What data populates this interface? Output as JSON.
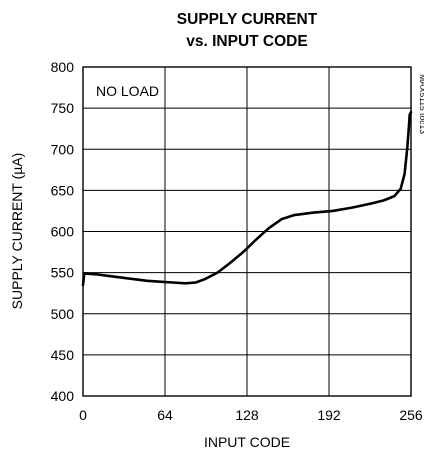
{
  "chart_data": {
    "type": "line",
    "title_line1": "SUPPLY CURRENT",
    "title_line2": "vs. INPUT CODE",
    "xlabel": "INPUT CODE",
    "ylabel": "SUPPLY CURRENT (µA)",
    "xlim": [
      0,
      256
    ],
    "ylim": [
      400,
      800
    ],
    "x_ticks": [
      0,
      64,
      128,
      192,
      256
    ],
    "y_ticks": [
      400,
      450,
      500,
      550,
      600,
      650,
      700,
      750,
      800
    ],
    "grid": true,
    "annotation": "NO LOAD",
    "figure_id": "MAX5115 toc13",
    "series": [
      {
        "points": [
          [
            0,
            535
          ],
          [
            1,
            549
          ],
          [
            10,
            548
          ],
          [
            20,
            546
          ],
          [
            30,
            544
          ],
          [
            40,
            542
          ],
          [
            50,
            540
          ],
          [
            60,
            539
          ],
          [
            70,
            538
          ],
          [
            80,
            537
          ],
          [
            88,
            538
          ],
          [
            95,
            542
          ],
          [
            105,
            550
          ],
          [
            115,
            562
          ],
          [
            125,
            575
          ],
          [
            135,
            590
          ],
          [
            145,
            604
          ],
          [
            155,
            615
          ],
          [
            165,
            620
          ],
          [
            180,
            623
          ],
          [
            195,
            625
          ],
          [
            210,
            629
          ],
          [
            225,
            634
          ],
          [
            235,
            638
          ],
          [
            243,
            643
          ],
          [
            248,
            652
          ],
          [
            251,
            670
          ],
          [
            253,
            700
          ],
          [
            254,
            720
          ],
          [
            255,
            742
          ],
          [
            256,
            745
          ]
        ]
      }
    ]
  }
}
